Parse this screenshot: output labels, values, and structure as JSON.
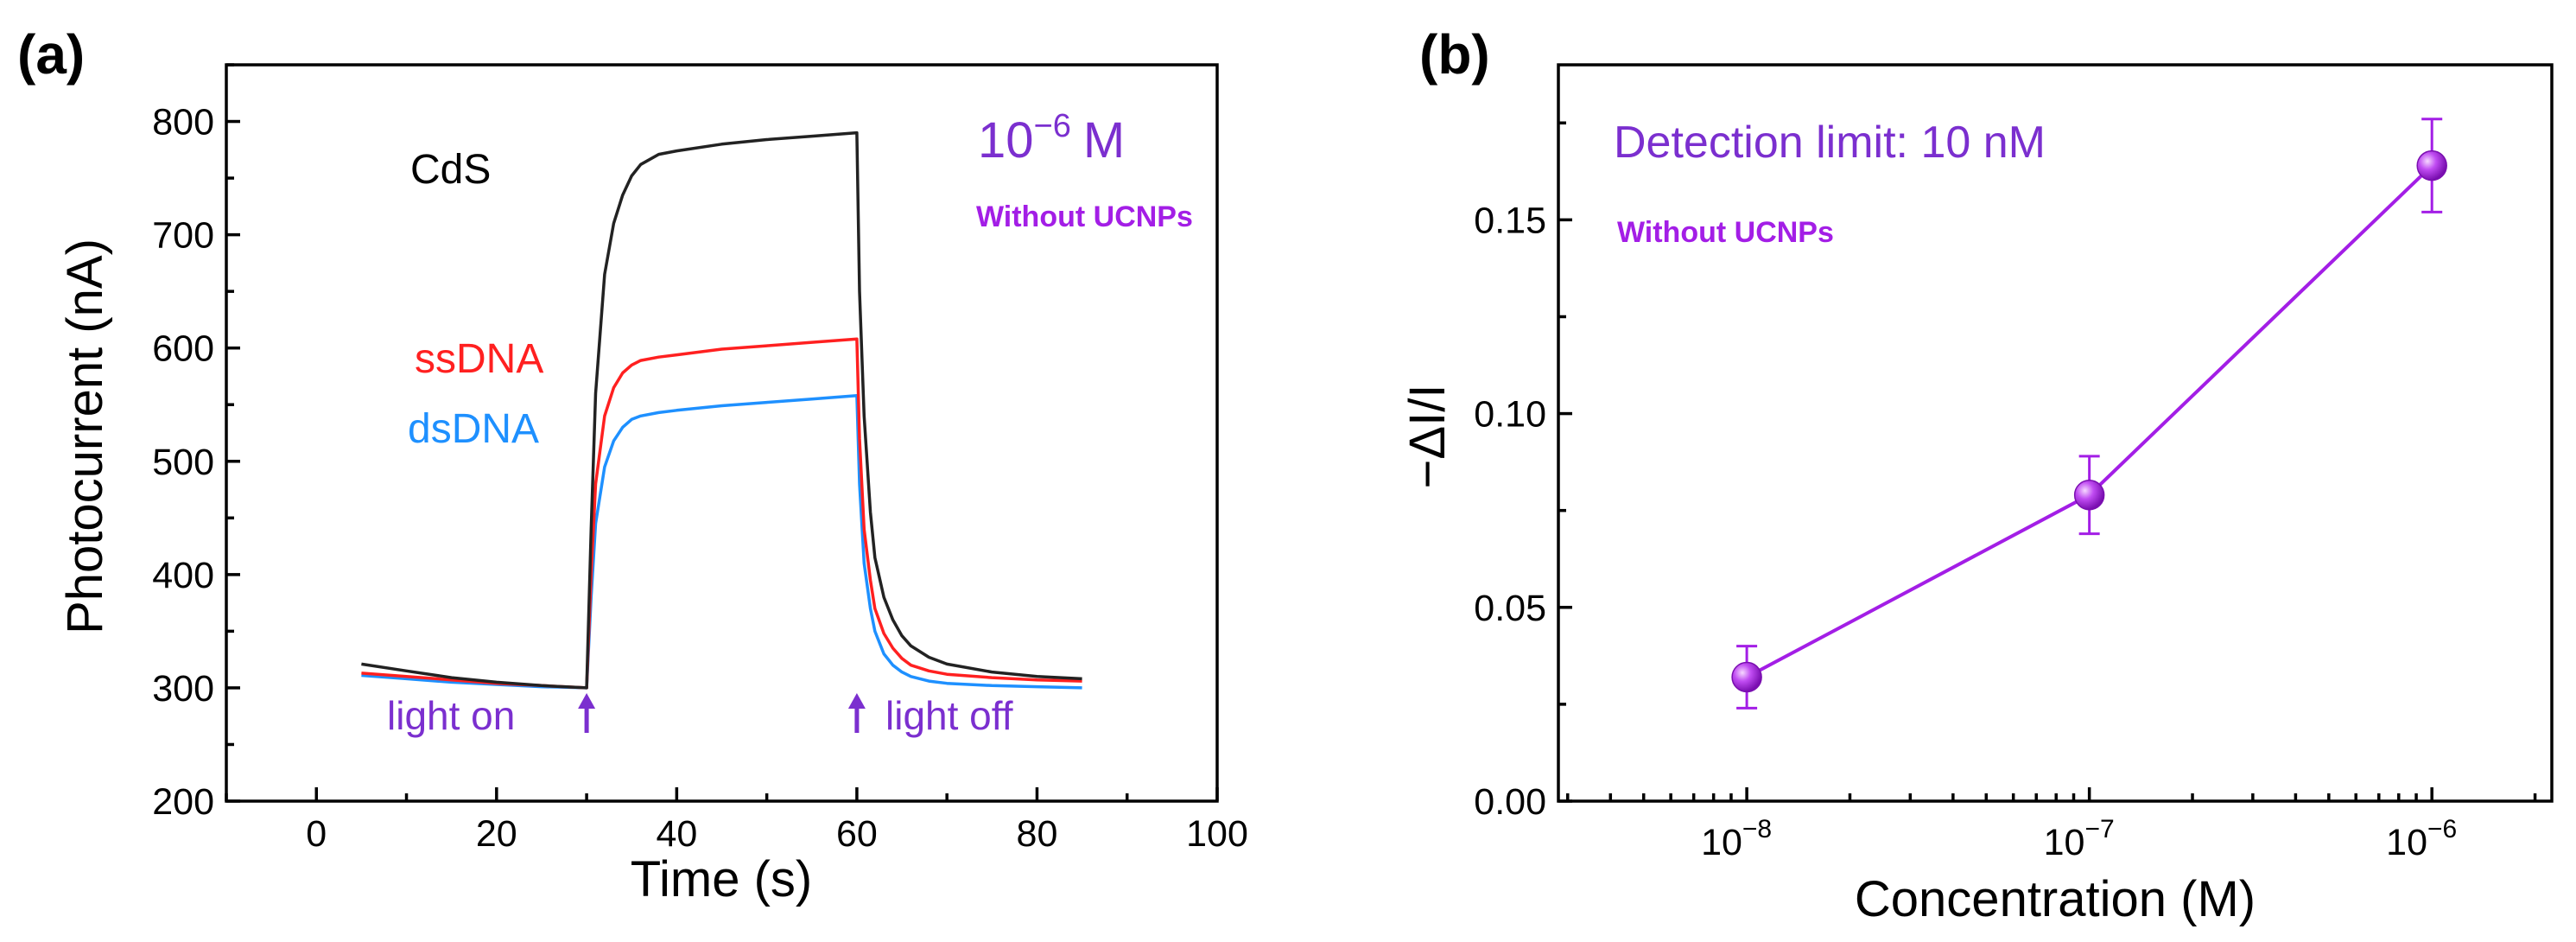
{
  "chart_data": [
    {
      "panel_label": "(a)",
      "type": "line",
      "xlabel": "Time (s)",
      "ylabel": "Photocurrent (nA)",
      "xlim": [
        -10,
        100
      ],
      "ylim": [
        200,
        850
      ],
      "xticks": [
        0,
        20,
        40,
        60,
        80,
        100
      ],
      "yticks": [
        200,
        300,
        400,
        500,
        600,
        700,
        800
      ],
      "annotations": {
        "cds": "CdS",
        "conc_base": "10",
        "conc_exp": "−6",
        "conc_unit": "M",
        "without": "Without UCNPs",
        "light_on": "light on",
        "light_off": "light off",
        "light_on_time": 30,
        "light_off_time": 60
      },
      "colors": {
        "CdS": "#222222",
        "ssDNA": "#ff2020",
        "dsDNA": "#1e90ff",
        "annotation": "#7b2fcf",
        "without": "#a31ee6"
      },
      "series": [
        {
          "name": "CdS",
          "label": "CdS",
          "x": [
            5,
            10,
            15,
            20,
            25,
            30,
            30.5,
            31,
            32,
            33,
            34,
            35,
            36,
            38,
            40,
            45,
            50,
            55,
            60,
            60.3,
            60.8,
            61.5,
            62,
            63,
            64,
            65,
            66,
            68,
            70,
            75,
            80,
            85
          ],
          "y": [
            321,
            315,
            309,
            305,
            302,
            300,
            440,
            560,
            665,
            710,
            735,
            752,
            762,
            771,
            774,
            780,
            784,
            787,
            790,
            650,
            540,
            455,
            415,
            380,
            360,
            346,
            337,
            327,
            321,
            314,
            310,
            308
          ]
        },
        {
          "name": "ssDNA",
          "label": "ssDNA",
          "x": [
            5,
            10,
            15,
            20,
            25,
            30,
            30.5,
            31,
            32,
            33,
            34,
            35,
            36,
            38,
            40,
            45,
            50,
            55,
            60,
            60.3,
            60.8,
            61.5,
            62,
            63,
            64,
            65,
            66,
            68,
            70,
            75,
            80,
            85
          ],
          "y": [
            313,
            310,
            307,
            304,
            302,
            300,
            400,
            480,
            540,
            565,
            578,
            585,
            589,
            592,
            594,
            599,
            602,
            605,
            608,
            520,
            440,
            395,
            370,
            348,
            335,
            326,
            320,
            315,
            312,
            309,
            307,
            306
          ]
        },
        {
          "name": "dsDNA",
          "label": "dsDNA",
          "x": [
            5,
            10,
            15,
            20,
            25,
            30,
            30.5,
            31,
            32,
            33,
            34,
            35,
            36,
            38,
            40,
            45,
            50,
            55,
            60,
            60.3,
            60.8,
            61.5,
            62,
            63,
            64,
            65,
            66,
            68,
            70,
            75,
            80,
            85
          ],
          "y": [
            311,
            308,
            305,
            303,
            301,
            300,
            380,
            445,
            495,
            518,
            530,
            537,
            540,
            543,
            545,
            549,
            552,
            555,
            558,
            480,
            410,
            370,
            350,
            330,
            320,
            314,
            310,
            306,
            304,
            302,
            301,
            300
          ]
        }
      ]
    },
    {
      "panel_label": "(b)",
      "type": "line",
      "xscale": "log",
      "xlabel": "Concentration (M)",
      "ylabel": "−ΔI/I",
      "xlim_exp": [
        -8.55,
        -5.65
      ],
      "ylim": [
        0,
        0.19
      ],
      "yticks": [
        "0.00",
        "0.05",
        "0.10",
        "0.15"
      ],
      "xtick_base": "10",
      "xtick_exps": [
        "−8",
        "−7",
        "−6"
      ],
      "annotations": {
        "detection": "Detection limit: 10 nM",
        "without": "Without UCNPs"
      },
      "color": "#a31ee6",
      "series": [
        {
          "name": "−ΔI/I",
          "x": [
            1e-08,
            1e-07,
            1e-06
          ],
          "x_exp": [
            -8,
            -7,
            -6
          ],
          "y": [
            0.032,
            0.079,
            0.164
          ],
          "yerr": [
            0.008,
            0.01,
            0.012
          ]
        }
      ]
    }
  ]
}
